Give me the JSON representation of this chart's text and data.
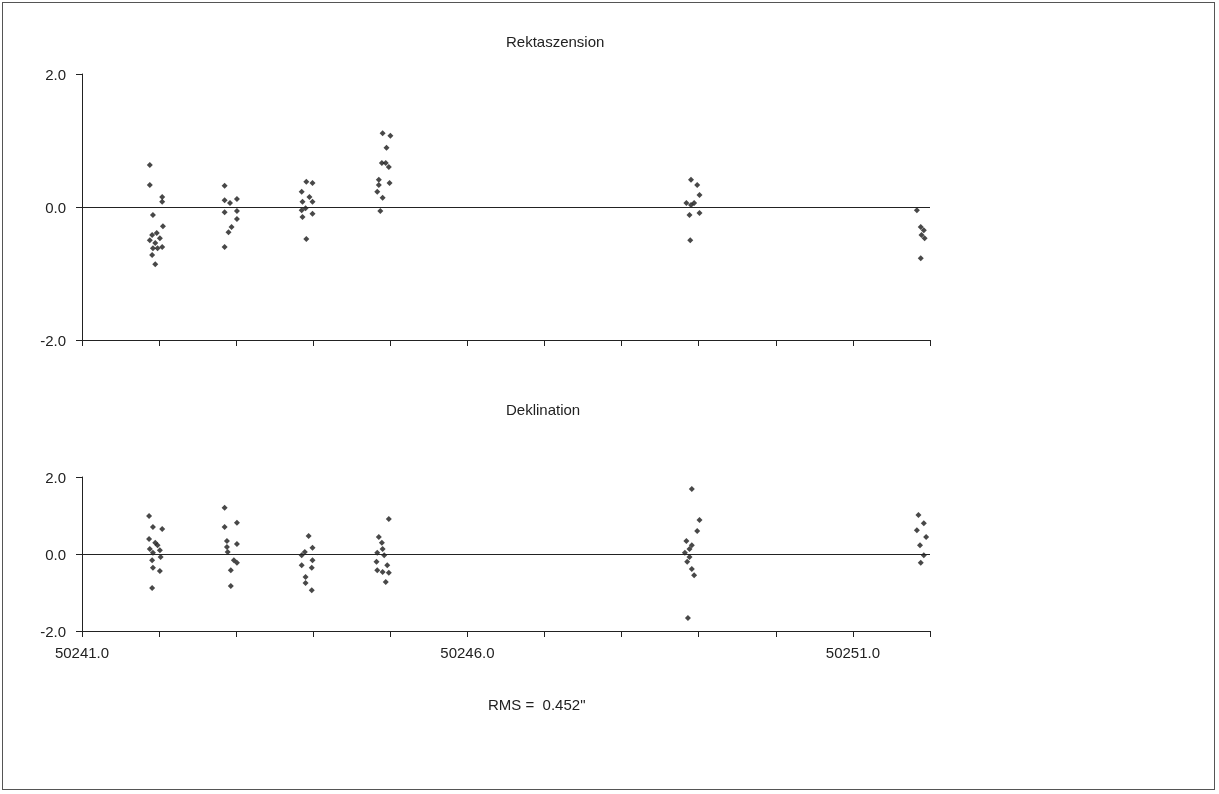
{
  "chart_data": [
    {
      "type": "scatter",
      "title": "Rektaszension",
      "marker": "diamond",
      "tick_labels": "y",
      "grid": false,
      "xlim": [
        50241,
        50252
      ],
      "xticks": [
        {
          "value": 50241,
          "label": null
        },
        {
          "value": 50242,
          "label": null
        },
        {
          "value": 50243,
          "label": null
        },
        {
          "value": 50244,
          "label": null
        },
        {
          "value": 50245,
          "label": null
        },
        {
          "value": 50246,
          "label": null
        },
        {
          "value": 50247,
          "label": null
        },
        {
          "value": 50248,
          "label": null
        },
        {
          "value": 50249,
          "label": null
        },
        {
          "value": 50250,
          "label": null
        },
        {
          "value": 50251,
          "label": null
        },
        {
          "value": 50252,
          "label": null
        }
      ],
      "ylim": [
        -2,
        2
      ],
      "yticks": [
        {
          "value": -2,
          "label": "-2.0"
        },
        {
          "value": 0,
          "label": "0.0"
        },
        {
          "value": 2,
          "label": "2.0"
        }
      ],
      "ref_lines": [
        {
          "axis": "y",
          "value": 0,
          "color": "#222222"
        }
      ],
      "series": [
        {
          "color": "#1a1a1a",
          "x": [
            50241.88,
            50241.88,
            50242.04,
            50242.04,
            50241.92,
            50242.05,
            50241.91,
            50241.97,
            50242.01,
            50241.88,
            50241.95,
            50242.04,
            50241.92,
            50241.98,
            50241.91,
            50241.95,
            50242.85,
            50242.85,
            50243.01,
            50242.92,
            50242.85,
            50243.01,
            50243.01,
            50242.94,
            50242.9,
            50242.85,
            50243.91,
            50243.99,
            50243.85,
            50243.95,
            50243.99,
            50243.86,
            50243.85,
            50243.9,
            50243.99,
            50243.86,
            50243.91,
            50244.9,
            50245.0,
            50244.95,
            50244.94,
            50244.98,
            50244.89,
            50244.85,
            50244.99,
            50244.85,
            50244.83,
            50244.9,
            50244.87,
            50248.9,
            50248.98,
            50249.01,
            50248.84,
            50248.9,
            50248.94,
            50248.88,
            50249.01,
            50248.89,
            50251.83,
            50251.88,
            50251.92,
            50251.89,
            50251.93,
            50251.88
          ],
          "values": [
            0.63,
            0.33,
            0.15,
            0.08,
            -0.12,
            -0.29,
            -0.42,
            -0.39,
            -0.47,
            -0.5,
            -0.54,
            -0.6,
            -0.62,
            -0.62,
            -0.72,
            -0.86,
            0.32,
            0.1,
            0.12,
            0.06,
            -0.08,
            -0.06,
            -0.18,
            -0.3,
            -0.38,
            -0.6,
            0.38,
            0.36,
            0.23,
            0.15,
            0.08,
            0.08,
            -0.05,
            -0.02,
            -0.1,
            -0.15,
            -0.48,
            1.11,
            1.07,
            0.89,
            0.66,
            0.6,
            0.66,
            0.41,
            0.36,
            0.33,
            0.23,
            0.14,
            -0.06,
            0.41,
            0.33,
            0.18,
            0.06,
            0.03,
            0.06,
            -0.12,
            -0.09,
            -0.5,
            -0.05,
            -0.3,
            -0.35,
            -0.42,
            -0.47,
            -0.77
          ]
        }
      ]
    },
    {
      "type": "scatter",
      "title": "Deklination",
      "marker": "diamond",
      "grid": false,
      "xlim": [
        50241,
        50252
      ],
      "xticks": [
        {
          "value": 50241,
          "label": "50241.0"
        },
        {
          "value": 50242,
          "label": null
        },
        {
          "value": 50243,
          "label": null
        },
        {
          "value": 50244,
          "label": null
        },
        {
          "value": 50245,
          "label": null
        },
        {
          "value": 50246,
          "label": "50246.0"
        },
        {
          "value": 50247,
          "label": null
        },
        {
          "value": 50248,
          "label": null
        },
        {
          "value": 50249,
          "label": null
        },
        {
          "value": 50250,
          "label": null
        },
        {
          "value": 50251,
          "label": "50251.0"
        },
        {
          "value": 50252,
          "label": null
        }
      ],
      "ylim": [
        -2,
        2
      ],
      "yticks": [
        {
          "value": -2,
          "label": "-2.0"
        },
        {
          "value": 0,
          "label": "0.0"
        },
        {
          "value": 2,
          "label": "2.0"
        }
      ],
      "ref_lines": [
        {
          "axis": "y",
          "value": 0,
          "color": "#222222"
        }
      ],
      "annotations": [
        "RMS =  0.452\""
      ],
      "series": [
        {
          "color": "#1a1a1a",
          "x": [
            50241.87,
            50241.92,
            50242.04,
            50241.87,
            50241.95,
            50241.98,
            50241.88,
            50242.01,
            50241.92,
            50242.02,
            50241.91,
            50241.92,
            50242.01,
            50241.91,
            50242.85,
            50242.85,
            50243.01,
            50242.88,
            50243.01,
            50242.88,
            50242.89,
            50242.97,
            50243.01,
            50242.93,
            50242.93,
            50243.94,
            50243.99,
            50243.89,
            50243.85,
            50243.99,
            50243.85,
            50243.98,
            50243.9,
            50243.9,
            50243.98,
            50244.98,
            50244.85,
            50244.89,
            50244.9,
            50244.83,
            50244.92,
            50244.82,
            50244.96,
            50244.83,
            50244.9,
            50244.98,
            50244.94,
            50248.91,
            50249.01,
            50248.98,
            50248.84,
            50248.91,
            50248.88,
            50248.82,
            50248.88,
            50248.85,
            50248.91,
            50248.94,
            50248.86,
            50251.85,
            50251.92,
            50251.83,
            50251.95,
            50251.87,
            50251.92,
            50251.88
          ],
          "values": [
            0.99,
            0.7,
            0.65,
            0.39,
            0.29,
            0.23,
            0.13,
            0.1,
            0.03,
            -0.08,
            -0.16,
            -0.36,
            -0.44,
            -0.88,
            1.2,
            0.7,
            0.81,
            0.34,
            0.26,
            0.18,
            0.05,
            -0.16,
            -0.23,
            -0.42,
            -0.83,
            0.47,
            0.16,
            0.05,
            -0.03,
            -0.16,
            -0.29,
            -0.36,
            -0.6,
            -0.75,
            -0.94,
            0.91,
            0.44,
            0.29,
            0.13,
            0.03,
            -0.03,
            -0.2,
            -0.29,
            -0.42,
            -0.47,
            -0.49,
            -0.73,
            1.69,
            0.88,
            0.6,
            0.34,
            0.23,
            0.13,
            0.03,
            -0.08,
            -0.2,
            -0.39,
            -0.55,
            -1.66,
            1.01,
            0.8,
            0.62,
            0.44,
            0.23,
            -0.03,
            -0.23
          ]
        }
      ]
    }
  ]
}
